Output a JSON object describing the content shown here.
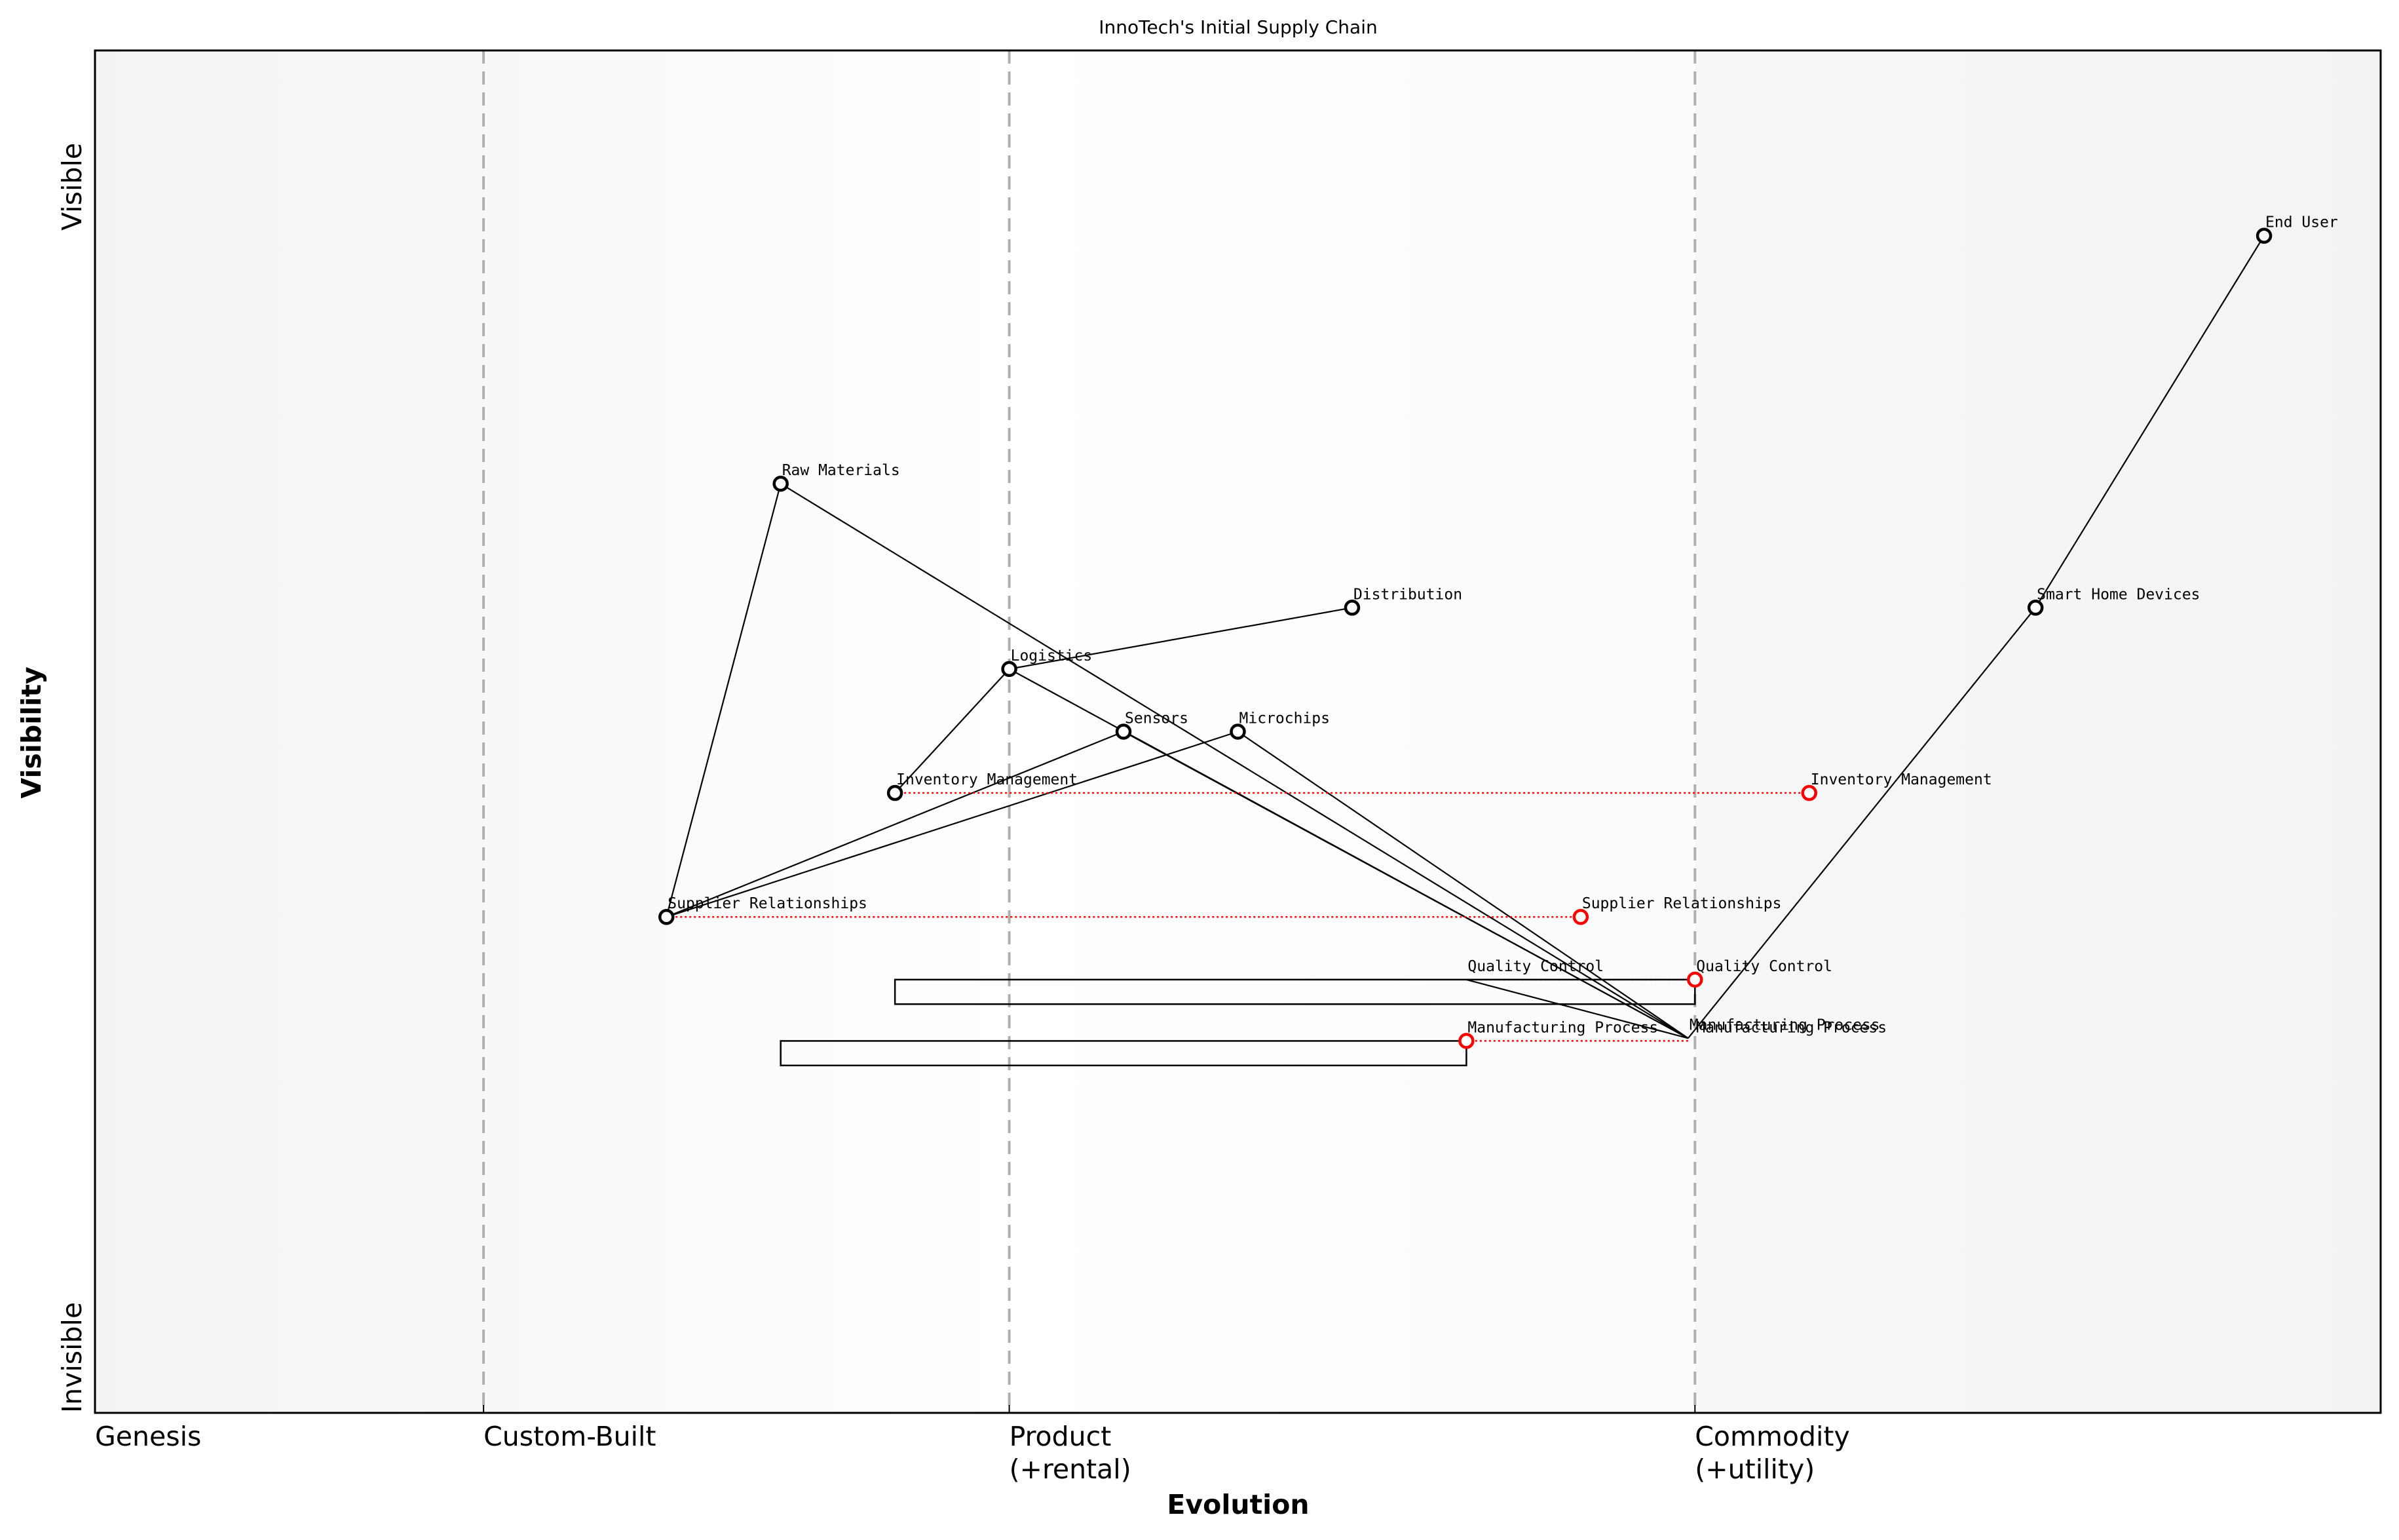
{
  "chart_data": {
    "type": "wardley-map",
    "title": "InnoTech's Initial Supply Chain",
    "xlabel": "Evolution",
    "ylabel": "Visibility",
    "x_range": [
      0,
      1
    ],
    "y_range": [
      0,
      1
    ],
    "x_ticks": [
      {
        "pos": 0.0,
        "label": "Genesis"
      },
      {
        "pos": 0.17,
        "label": "Custom-Built"
      },
      {
        "pos": 0.4,
        "label": "Product\n(+rental)"
      },
      {
        "pos": 0.7,
        "label": "Commodity\n(+utility)"
      }
    ],
    "y_ticks": [
      {
        "pos": 0.0,
        "label": "Invisible"
      },
      {
        "pos": 0.9,
        "label": "Visible"
      }
    ],
    "stage_dividers": [
      0.17,
      0.4,
      0.7
    ],
    "components": [
      {
        "name": "End User",
        "x": 0.949,
        "y": 0.864,
        "marker": true
      },
      {
        "name": "Smart Home Devices",
        "x": 0.849,
        "y": 0.591,
        "marker": true
      },
      {
        "name": "Raw Materials",
        "x": 0.3,
        "y": 0.682,
        "marker": true
      },
      {
        "name": "Distribution",
        "x": 0.55,
        "y": 0.591,
        "marker": true
      },
      {
        "name": "Logistics",
        "x": 0.4,
        "y": 0.546,
        "marker": true
      },
      {
        "name": "Sensors",
        "x": 0.45,
        "y": 0.5,
        "marker": true
      },
      {
        "name": "Microchips",
        "x": 0.5,
        "y": 0.5,
        "marker": true
      },
      {
        "name": "Inventory Management",
        "x": 0.35,
        "y": 0.455,
        "marker": true
      },
      {
        "name": "Supplier Relationships",
        "x": 0.25,
        "y": 0.364,
        "marker": true
      },
      {
        "name": "Quality Control",
        "x": 0.6,
        "y": 0.318,
        "marker": false
      },
      {
        "name": "Manufacturing Process",
        "x": 0.697,
        "y": 0.275,
        "marker": false
      }
    ],
    "evolved_components": [
      {
        "name": "Inventory Management",
        "x": 0.75,
        "y": 0.455,
        "from_x": 0.35
      },
      {
        "name": "Supplier Relationships",
        "x": 0.65,
        "y": 0.364,
        "from_x": 0.25
      },
      {
        "name": "Quality Control",
        "x": 0.7,
        "y": 0.318,
        "from_x": 0.6
      },
      {
        "name": "Manufacturing Process",
        "x": 0.6,
        "y": 0.273,
        "from_x": 0.697
      }
    ],
    "extra_labels": [
      {
        "name": "Manufacturing Process",
        "x": 0.7,
        "y": 0.273
      }
    ],
    "links": [
      [
        "End User",
        "Smart Home Devices"
      ],
      [
        "Smart Home Devices",
        "Manufacturing Process"
      ],
      [
        "Raw Materials",
        "Supplier Relationships"
      ],
      [
        "Raw Materials",
        "Manufacturing Process"
      ],
      [
        "Logistics",
        "Distribution"
      ],
      [
        "Logistics",
        "Inventory Management"
      ],
      [
        "Logistics",
        "Manufacturing Process"
      ],
      [
        "Sensors",
        "Supplier Relationships"
      ],
      [
        "Microchips",
        "Supplier Relationships"
      ],
      [
        "Sensors",
        "Manufacturing Process"
      ],
      [
        "Microchips",
        "Manufacturing Process"
      ],
      [
        "Quality Control",
        "Manufacturing Process"
      ]
    ],
    "inertia_boxes": [
      {
        "name": "Quality Control",
        "x0": 0.35,
        "x1": 0.7,
        "y_top": 0.318,
        "y_bottom": 0.3
      },
      {
        "name": "Manufacturing Process",
        "x0": 0.3,
        "x1": 0.6,
        "y_top": 0.273,
        "y_bottom": 0.255
      }
    ],
    "colors": {
      "node": "#000000",
      "evolved": "#ff0000",
      "divider": "#b0b0b0",
      "bg_edge": "#f5f5f5",
      "bg_center": "#ffffff"
    }
  }
}
